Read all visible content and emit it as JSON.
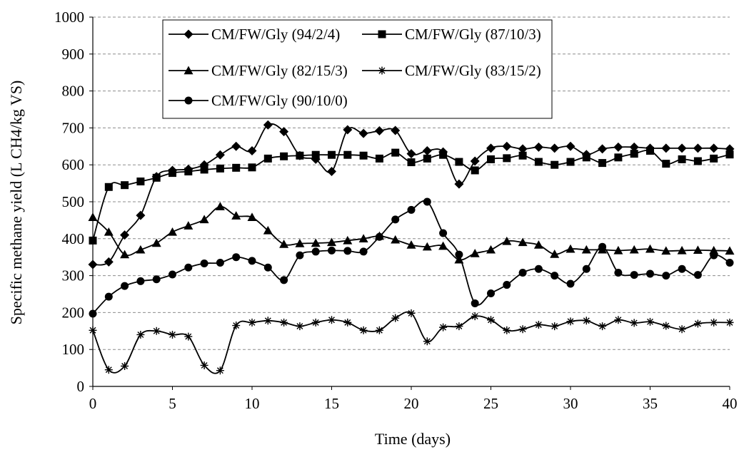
{
  "chart_data": {
    "type": "line",
    "title": "",
    "xlabel": "Time (days)",
    "ylabel": "Specific methane yield (L CH4/kg VS)",
    "xlim": [
      0,
      40
    ],
    "ylim": [
      0,
      1000
    ],
    "xticks": [
      0,
      5,
      10,
      15,
      20,
      25,
      30,
      35,
      40
    ],
    "yticks": [
      0,
      100,
      200,
      300,
      400,
      500,
      600,
      700,
      800,
      900,
      1000
    ],
    "grid": "horizontal dashed",
    "legend_position": "top-left inside",
    "series": [
      {
        "name": "CM/FW/Gly (94/2/4)",
        "marker": "diamond",
        "x": [
          0,
          1,
          2,
          3,
          4,
          5,
          6,
          7,
          8,
          9,
          10,
          11,
          12,
          13,
          14,
          15,
          16,
          17,
          18,
          19,
          20,
          21,
          22,
          23,
          24,
          25,
          26,
          27,
          28,
          29,
          30,
          31,
          32,
          33,
          34,
          35,
          36,
          37,
          38,
          39,
          40
        ],
        "values": [
          330,
          337,
          410,
          463,
          568,
          585,
          588,
          600,
          627,
          650,
          638,
          708,
          690,
          625,
          615,
          582,
          695,
          685,
          692,
          693,
          630,
          638,
          635,
          548,
          610,
          645,
          650,
          643,
          648,
          645,
          650,
          628,
          643,
          648,
          648,
          645,
          645,
          645,
          645,
          645,
          643
        ]
      },
      {
        "name": "CM/FW/Gly (87/10/3)",
        "marker": "square",
        "x": [
          0,
          1,
          2,
          3,
          4,
          5,
          6,
          7,
          8,
          9,
          10,
          11,
          12,
          13,
          14,
          15,
          16,
          17,
          18,
          19,
          20,
          21,
          22,
          23,
          24,
          25,
          26,
          27,
          28,
          29,
          30,
          31,
          32,
          33,
          34,
          35,
          36,
          37,
          38,
          39,
          40
        ],
        "values": [
          395,
          540,
          545,
          555,
          565,
          578,
          582,
          587,
          590,
          592,
          593,
          617,
          623,
          625,
          627,
          627,
          627,
          625,
          617,
          633,
          607,
          617,
          627,
          608,
          585,
          615,
          618,
          625,
          608,
          600,
          608,
          620,
          605,
          620,
          630,
          638,
          603,
          615,
          610,
          617,
          628
        ]
      },
      {
        "name": "CM/FW/Gly (82/15/3)",
        "marker": "triangle",
        "x": [
          0,
          1,
          2,
          3,
          4,
          5,
          6,
          7,
          8,
          9,
          10,
          11,
          12,
          13,
          14,
          15,
          16,
          17,
          18,
          19,
          20,
          21,
          22,
          23,
          24,
          25,
          26,
          27,
          28,
          29,
          30,
          31,
          32,
          33,
          34,
          35,
          36,
          37,
          38,
          39,
          40
        ],
        "values": [
          458,
          418,
          357,
          370,
          388,
          418,
          435,
          452,
          487,
          462,
          458,
          422,
          385,
          387,
          388,
          390,
          395,
          400,
          407,
          397,
          383,
          378,
          380,
          343,
          360,
          370,
          393,
          390,
          383,
          358,
          372,
          370,
          370,
          368,
          370,
          372,
          367,
          368,
          369,
          368,
          367
        ]
      },
      {
        "name": "CM/FW/Gly (83/15/2)",
        "marker": "star",
        "x": [
          0,
          1,
          2,
          3,
          4,
          5,
          6,
          7,
          8,
          9,
          10,
          11,
          12,
          13,
          14,
          15,
          16,
          17,
          18,
          19,
          20,
          21,
          22,
          23,
          24,
          25,
          26,
          27,
          28,
          29,
          30,
          31,
          32,
          33,
          34,
          35,
          36,
          37,
          38,
          39,
          40
        ],
        "values": [
          152,
          45,
          55,
          140,
          150,
          140,
          135,
          57,
          43,
          165,
          173,
          178,
          173,
          163,
          173,
          180,
          173,
          152,
          152,
          185,
          198,
          122,
          160,
          163,
          190,
          180,
          152,
          155,
          167,
          163,
          176,
          178,
          163,
          180,
          172,
          175,
          164,
          155,
          170,
          173,
          173
        ]
      },
      {
        "name": "CM/FW/Gly (90/10/0)",
        "marker": "circle",
        "x": [
          0,
          1,
          2,
          3,
          4,
          5,
          6,
          7,
          8,
          9,
          10,
          11,
          12,
          13,
          14,
          15,
          16,
          17,
          18,
          19,
          20,
          21,
          22,
          23,
          24,
          25,
          26,
          27,
          28,
          29,
          30,
          31,
          32,
          33,
          34,
          35,
          36,
          37,
          38,
          39,
          40
        ],
        "values": [
          197,
          243,
          272,
          285,
          290,
          303,
          322,
          333,
          335,
          350,
          340,
          322,
          288,
          355,
          365,
          368,
          367,
          365,
          405,
          452,
          478,
          500,
          415,
          357,
          225,
          252,
          275,
          308,
          318,
          300,
          278,
          318,
          378,
          308,
          302,
          305,
          300,
          318,
          302,
          355,
          335
        ]
      }
    ]
  }
}
